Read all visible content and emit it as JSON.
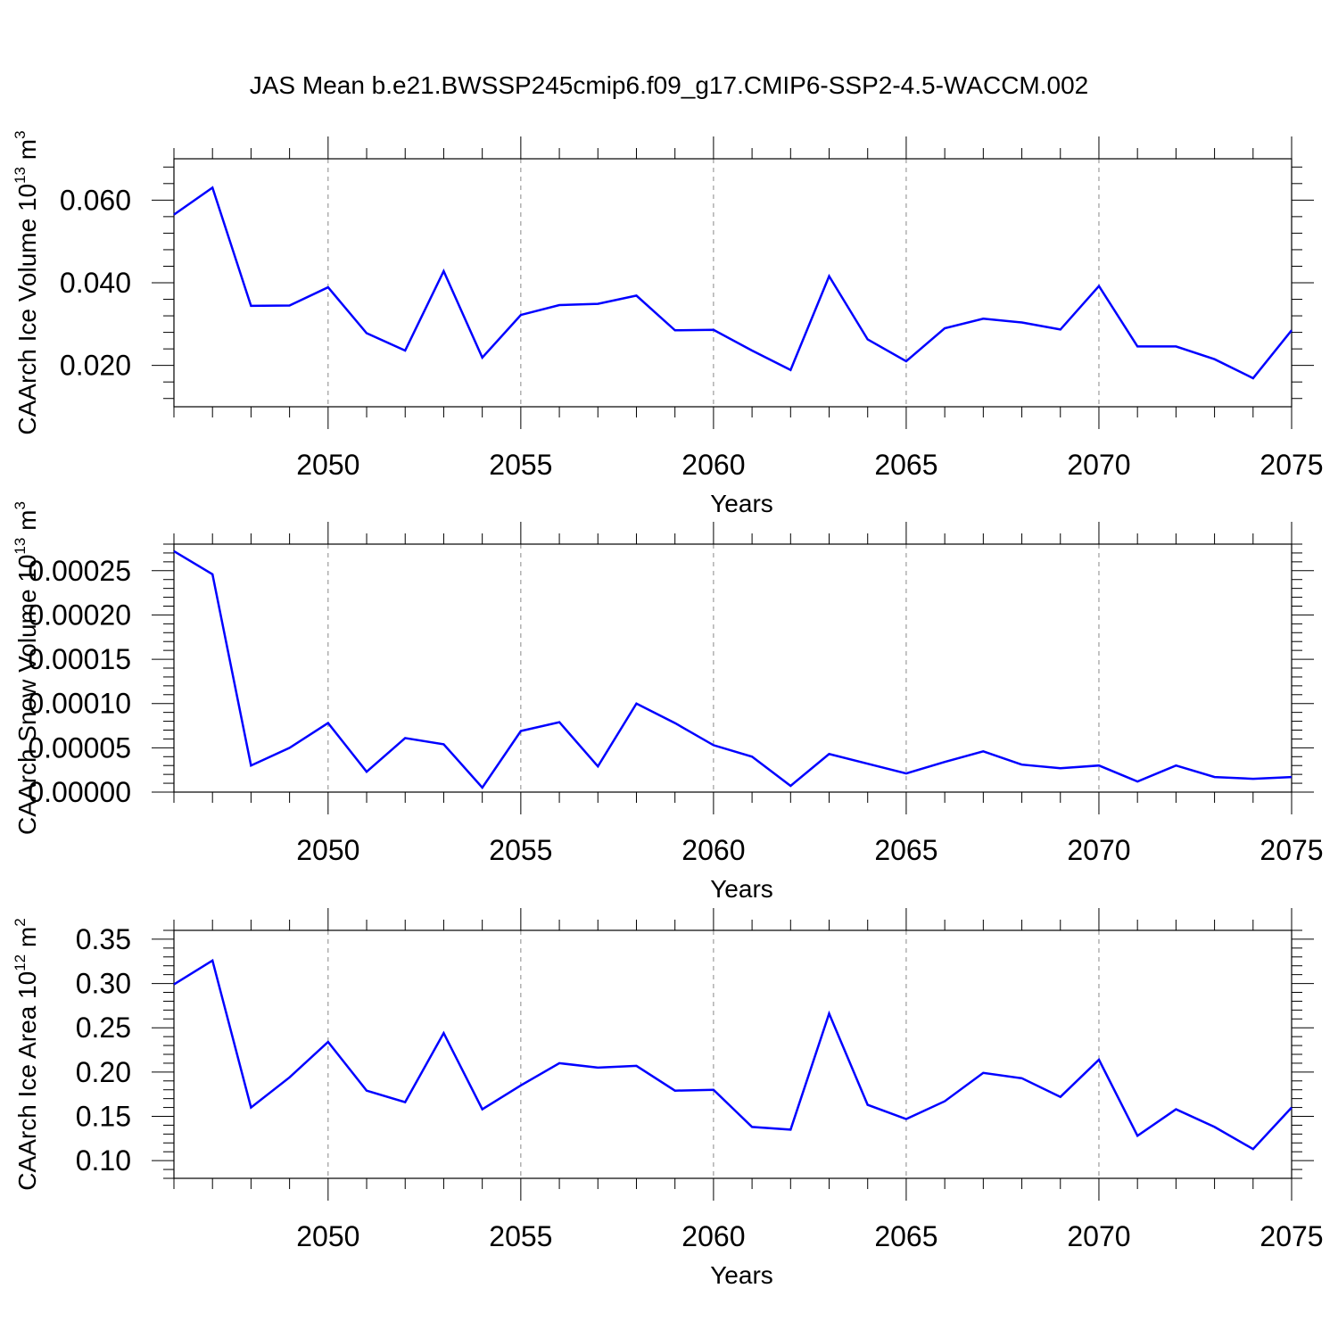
{
  "title": "JAS Mean b.e21.BWSSP245cmip6.f09_g17.CMIP6-SSP2-4.5-WACCM.002",
  "colors": {
    "line": "#0000ff",
    "axis": "#000000",
    "grid": "#888888"
  },
  "chart_data": [
    {
      "type": "line",
      "ylabel": {
        "text": "CAArch Ice Volume 10",
        "sup": "13",
        "unit": " m",
        "unit_sup": "3"
      },
      "xlabel": "Years",
      "xlim": [
        2046,
        2075
      ],
      "ylim": [
        0.01,
        0.07
      ],
      "yticks": [
        0.02,
        0.04,
        0.06
      ],
      "ytick_labels": [
        "0.020",
        "0.040",
        "0.060"
      ],
      "xticks": [
        2050,
        2055,
        2060,
        2065,
        2070,
        2075
      ],
      "xtick_labels": [
        "2050",
        "2055",
        "2060",
        "2065",
        "2070",
        "2075"
      ],
      "grid": "vertical dashed at major x ticks",
      "series": [
        {
          "x": [
            2046,
            2047,
            2048,
            2049,
            2050,
            2051,
            2052,
            2053,
            2054,
            2055,
            2056,
            2057,
            2058,
            2059,
            2060,
            2061,
            2062,
            2063,
            2064,
            2065,
            2066,
            2067,
            2068,
            2069,
            2070,
            2071,
            2072,
            2073,
            2074,
            2075
          ],
          "values": [
            0.0565,
            0.063,
            0.0344,
            0.0345,
            0.0389,
            0.0278,
            0.0236,
            0.0428,
            0.0219,
            0.0322,
            0.0346,
            0.0349,
            0.0369,
            0.0285,
            0.0286,
            0.0236,
            0.0189,
            0.0416,
            0.0263,
            0.021,
            0.029,
            0.0313,
            0.0304,
            0.0287,
            0.0392,
            0.0246,
            0.0246,
            0.0215,
            0.0169,
            0.0285
          ]
        }
      ]
    },
    {
      "type": "line",
      "ylabel": {
        "text": "CAArch Snow Volume 10",
        "sup": "13",
        "unit": " m",
        "unit_sup": "3"
      },
      "xlabel": "Years",
      "xlim": [
        2046,
        2075
      ],
      "ylim": [
        0.0,
        0.00028
      ],
      "yticks": [
        0.0,
        5e-05,
        0.0001,
        0.00015,
        0.0002,
        0.00025
      ],
      "ytick_labels": [
        "0.00000",
        "0.00005",
        "0.00010",
        "0.00015",
        "0.00020",
        "0.00025"
      ],
      "xticks": [
        2050,
        2055,
        2060,
        2065,
        2070,
        2075
      ],
      "xtick_labels": [
        "2050",
        "2055",
        "2060",
        "2065",
        "2070",
        "2075"
      ],
      "grid": "vertical dashed at major x ticks",
      "series": [
        {
          "x": [
            2046,
            2047,
            2048,
            2049,
            2050,
            2051,
            2052,
            2053,
            2054,
            2055,
            2056,
            2057,
            2058,
            2059,
            2060,
            2061,
            2062,
            2063,
            2064,
            2065,
            2066,
            2067,
            2068,
            2069,
            2070,
            2071,
            2072,
            2073,
            2074,
            2075
          ],
          "values": [
            0.000272,
            0.000246,
            3e-05,
            5e-05,
            7.8e-05,
            2.3e-05,
            6.1e-05,
            5.4e-05,
            5e-06,
            6.9e-05,
            7.9e-05,
            2.9e-05,
            0.0001,
            7.8e-05,
            5.3e-05,
            4e-05,
            7e-06,
            4.3e-05,
            3.2e-05,
            2.1e-05,
            3.4e-05,
            4.6e-05,
            3.1e-05,
            2.7e-05,
            3e-05,
            1.2e-05,
            3e-05,
            1.7e-05,
            1.5e-05,
            1.7e-05
          ]
        }
      ]
    },
    {
      "type": "line",
      "ylabel": {
        "text": "CAArch Ice Area 10",
        "sup": "12",
        "unit": " m",
        "unit_sup": "2"
      },
      "xlabel": "Years",
      "xlim": [
        2046,
        2075
      ],
      "ylim": [
        0.08,
        0.36
      ],
      "yticks": [
        0.1,
        0.15,
        0.2,
        0.25,
        0.3,
        0.35
      ],
      "ytick_labels": [
        "0.10",
        "0.15",
        "0.20",
        "0.25",
        "0.30",
        "0.35"
      ],
      "xticks": [
        2050,
        2055,
        2060,
        2065,
        2070,
        2075
      ],
      "xtick_labels": [
        "2050",
        "2055",
        "2060",
        "2065",
        "2070",
        "2075"
      ],
      "grid": "vertical dashed at major x ticks",
      "series": [
        {
          "x": [
            2046,
            2047,
            2048,
            2049,
            2050,
            2051,
            2052,
            2053,
            2054,
            2055,
            2056,
            2057,
            2058,
            2059,
            2060,
            2061,
            2062,
            2063,
            2064,
            2065,
            2066,
            2067,
            2068,
            2069,
            2070,
            2071,
            2072,
            2073,
            2074,
            2075
          ],
          "values": [
            0.299,
            0.326,
            0.16,
            0.194,
            0.234,
            0.179,
            0.166,
            0.244,
            0.158,
            0.185,
            0.21,
            0.205,
            0.207,
            0.179,
            0.18,
            0.138,
            0.135,
            0.266,
            0.163,
            0.147,
            0.167,
            0.199,
            0.193,
            0.172,
            0.214,
            0.128,
            0.158,
            0.138,
            0.113,
            0.16
          ]
        }
      ]
    }
  ]
}
